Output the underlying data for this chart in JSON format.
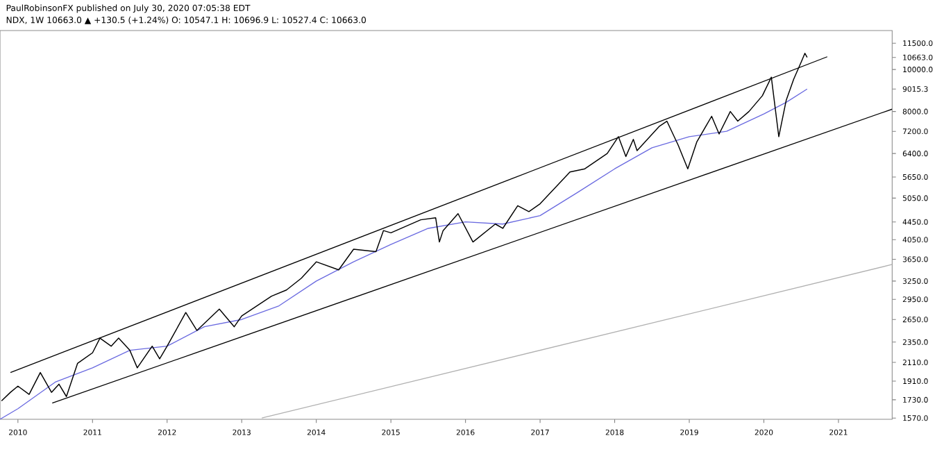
{
  "chart_data": {
    "type": "line",
    "title": "NDX, 1W 10663.0 ▲ +130.5 (+1.24%) O: 10547.1 H: 10696.9 L: 10527.4 C: 10663.0",
    "annotations": [
      "PaulRobinsonFX published on July 30, 2020 07:05:38 EDT"
    ],
    "log": "y",
    "grid": false,
    "xlim": [
      2009.76,
      2021.72
    ],
    "ylim": [
      1560,
      12300
    ],
    "xticks": [
      2010,
      2011,
      2012,
      2013,
      2014,
      2015,
      2016,
      2017,
      2018,
      2019,
      2020,
      2021
    ],
    "yticks": [
      {
        "value": 1570,
        "label": "1570.0"
      },
      {
        "value": 1730,
        "label": "1730.0"
      },
      {
        "value": 1910,
        "label": "1910.0"
      },
      {
        "value": 2110,
        "label": "2110.0"
      },
      {
        "value": 2350,
        "label": "2350.0"
      },
      {
        "value": 2650,
        "label": "2650.0"
      },
      {
        "value": 2950,
        "label": "2950.0"
      },
      {
        "value": 3250,
        "label": "3250.0"
      },
      {
        "value": 3650,
        "label": "3650.0"
      },
      {
        "value": 4050,
        "label": "4050.0"
      },
      {
        "value": 4450,
        "label": "4450.0"
      },
      {
        "value": 5050,
        "label": "5050.0"
      },
      {
        "value": 5650,
        "label": "5650.0"
      },
      {
        "value": 6400,
        "label": "6400.0"
      },
      {
        "value": 7200,
        "label": "7200.0"
      },
      {
        "value": 8000,
        "label": "8000.0"
      },
      {
        "value": 9015.3,
        "label": "9015.3"
      },
      {
        "value": 10000,
        "label": "10000.0"
      },
      {
        "value": 10663,
        "label": "10663.0"
      },
      {
        "value": 11500,
        "label": "11500.0"
      }
    ],
    "series": [
      {
        "color": "#b0b0b0",
        "x": [
          2013.27,
          2021.72
        ],
        "values": [
          1570,
          3550
        ]
      },
      {
        "color": "#000000",
        "x": [
          2009.9,
          2020.85
        ],
        "values": [
          2000,
          10700
        ]
      },
      {
        "color": "#000000",
        "x": [
          2010.46,
          2021.72
        ],
        "values": [
          1700,
          8100
        ]
      },
      {
        "color": "#6a6ae0",
        "x": [
          2009.76,
          2010.0,
          2010.5,
          2011.0,
          2011.5,
          2012.0,
          2012.5,
          2013.0,
          2013.5,
          2014.0,
          2014.5,
          2015.0,
          2015.5,
          2016.0,
          2016.5,
          2017.0,
          2017.5,
          2018.0,
          2018.5,
          2019.0,
          2019.5,
          2020.0,
          2020.3,
          2020.58
        ],
        "values": [
          1560,
          1650,
          1900,
          2050,
          2250,
          2300,
          2550,
          2650,
          2850,
          3250,
          3600,
          3950,
          4300,
          4450,
          4400,
          4600,
          5200,
          5900,
          6600,
          7000,
          7200,
          7900,
          8400,
          9015.3
        ]
      },
      {
        "color": "#000000",
        "x": [
          2009.78,
          2009.9,
          2010.0,
          2010.15,
          2010.3,
          2010.45,
          2010.55,
          2010.65,
          2010.8,
          2011.0,
          2011.1,
          2011.25,
          2011.35,
          2011.5,
          2011.6,
          2011.8,
          2011.9,
          2012.0,
          2012.25,
          2012.4,
          2012.7,
          2012.9,
          2013.0,
          2013.4,
          2013.6,
          2013.8,
          2014.0,
          2014.3,
          2014.5,
          2014.8,
          2014.9,
          2015.0,
          2015.4,
          2015.6,
          2015.65,
          2015.7,
          2015.9,
          2016.1,
          2016.4,
          2016.5,
          2016.7,
          2016.85,
          2017.0,
          2017.4,
          2017.6,
          2017.9,
          2018.05,
          2018.15,
          2018.25,
          2018.3,
          2018.6,
          2018.7,
          2018.85,
          2018.98,
          2019.1,
          2019.3,
          2019.4,
          2019.55,
          2019.65,
          2019.8,
          2019.98,
          2020.1,
          2020.2,
          2020.3,
          2020.4,
          2020.5,
          2020.55,
          2020.58
        ],
        "values": [
          1720,
          1800,
          1860,
          1780,
          2000,
          1800,
          1880,
          1760,
          2100,
          2220,
          2400,
          2300,
          2400,
          2250,
          2050,
          2300,
          2150,
          2300,
          2750,
          2500,
          2800,
          2550,
          2700,
          3000,
          3100,
          3300,
          3600,
          3450,
          3850,
          3800,
          4250,
          4200,
          4500,
          4550,
          4000,
          4250,
          4650,
          4000,
          4400,
          4300,
          4850,
          4700,
          4900,
          5800,
          5900,
          6400,
          7000,
          6300,
          6900,
          6500,
          7400,
          7600,
          6700,
          5900,
          6800,
          7800,
          7100,
          8000,
          7600,
          8000,
          8700,
          9600,
          7000,
          8500,
          9500,
          10400,
          10900,
          10663
        ]
      }
    ]
  }
}
